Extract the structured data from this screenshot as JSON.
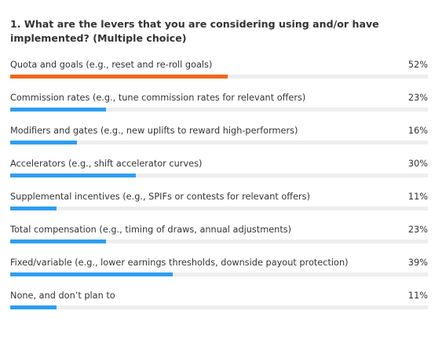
{
  "survey": {
    "question": "1. What are the levers that you are considering using and/or have implemented? (Multiple choice)",
    "colors": {
      "highlight": "#f0661a",
      "default": "#2e9ef0",
      "track": "#eeeeee"
    },
    "options": [
      {
        "label": "Quota and goals (e.g., reset and re-roll goals)",
        "percent_text": "52%",
        "fraction": 0.52,
        "highlight": true
      },
      {
        "label": "Commission rates (e.g., tune commission rates for relevant offers)",
        "percent_text": "23%",
        "fraction": 0.23,
        "highlight": false
      },
      {
        "label": "Modifiers and gates (e.g., new uplifts to reward high-performers)",
        "percent_text": "16%",
        "fraction": 0.16,
        "highlight": false
      },
      {
        "label": "Accelerators (e.g., shift accelerator curves)",
        "percent_text": "30%",
        "fraction": 0.3,
        "highlight": false
      },
      {
        "label": "Supplemental incentives (e.g., SPIFs or contests for relevant offers)",
        "percent_text": "11%",
        "fraction": 0.11,
        "highlight": false
      },
      {
        "label": "Total compensation (e.g., timing of draws, annual adjustments)",
        "percent_text": "23%",
        "fraction": 0.23,
        "highlight": false
      },
      {
        "label": "Fixed/variable (e.g., lower earnings thresholds, downside payout protection)",
        "percent_text": "39%",
        "fraction": 0.39,
        "highlight": false
      },
      {
        "label": "None, and don’t plan to",
        "percent_text": "11%",
        "fraction": 0.11,
        "highlight": false
      }
    ]
  }
}
